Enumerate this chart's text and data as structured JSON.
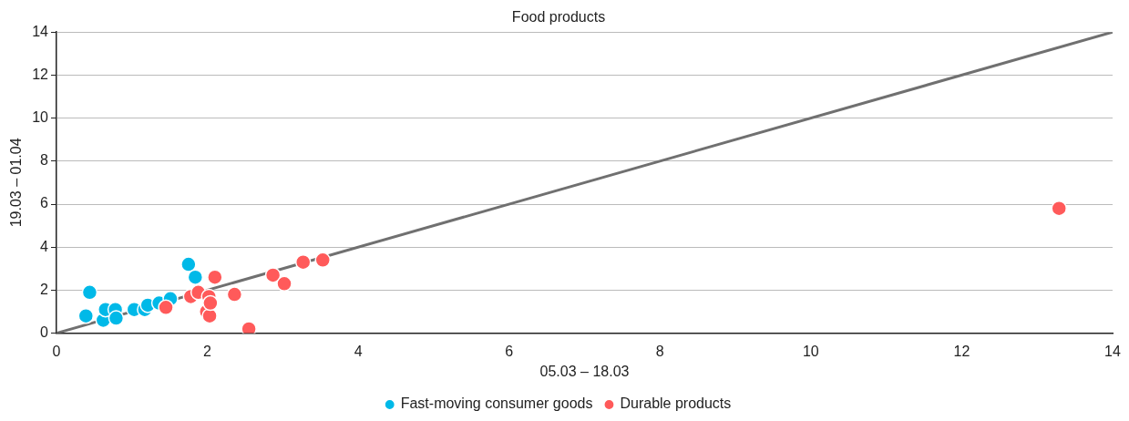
{
  "chart_data": {
    "type": "scatter",
    "title": "Food products",
    "xlabel": "05.03 – 18.03",
    "ylabel": "19.03 – 01.04",
    "xlim": [
      0,
      14
    ],
    "xticks": [
      0,
      2,
      4,
      6,
      8,
      10,
      12,
      14
    ],
    "ylim": [
      0,
      14
    ],
    "yticks": [
      0,
      2,
      4,
      6,
      8,
      10,
      12,
      14
    ],
    "grid": "y",
    "legend": "bottom",
    "marker": "circle",
    "series": [
      {
        "name": "Fast-moving consumer goods",
        "color": "#00b9e8",
        "x": [
          0.39,
          0.44,
          0.62,
          0.65,
          0.78,
          0.79,
          1.03,
          1.17,
          1.21,
          1.36,
          1.51,
          1.75,
          1.84
        ],
        "values": [
          0.8,
          1.9,
          0.6,
          1.1,
          1.1,
          0.7,
          1.1,
          1.1,
          1.3,
          1.4,
          1.6,
          3.2,
          2.6
        ]
      },
      {
        "name": "Durable products",
        "color": "#ff5a5a",
        "x": [
          1.45,
          1.78,
          1.88,
          1.99,
          2.03,
          2.02,
          2.04,
          2.1,
          2.36,
          2.55,
          2.87,
          3.02,
          3.27,
          3.53,
          13.29
        ],
        "values": [
          1.2,
          1.7,
          1.9,
          1.0,
          0.8,
          1.7,
          1.4,
          2.6,
          1.8,
          0.2,
          2.7,
          2.3,
          3.3,
          3.4,
          5.8
        ]
      },
      {
        "type": "line",
        "color": "#707070",
        "x": [
          0,
          14
        ],
        "values": [
          0,
          14
        ],
        "marker": "none",
        "line_style": "solid"
      }
    ]
  }
}
